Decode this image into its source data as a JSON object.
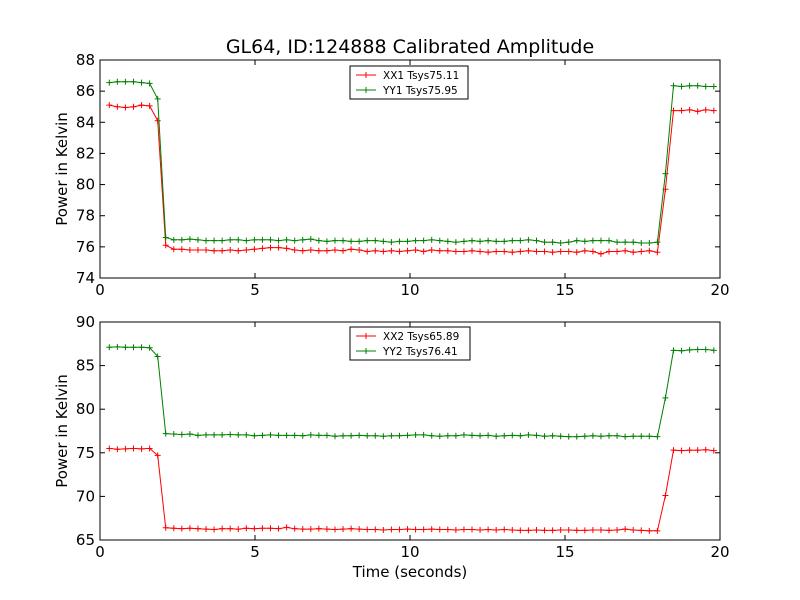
{
  "figure_title": "GL64, ID:124888 Calibrated Amplitude",
  "colors": {
    "xx": "#ff0000",
    "yy": "#008000"
  },
  "chart_data": [
    {
      "type": "line",
      "xlabel": "",
      "ylabel": "Power in Kelvin",
      "xlim": [
        0,
        20
      ],
      "ylim": [
        74,
        88
      ],
      "xticks": [
        "0",
        "5",
        "10",
        "15",
        "20"
      ],
      "yticks": [
        "74",
        "76",
        "78",
        "80",
        "82",
        "84",
        "86",
        "88"
      ],
      "grid": false,
      "legend_position": "top-center",
      "x": [
        0.3,
        0.56,
        0.82,
        1.08,
        1.34,
        1.6,
        1.86,
        2.12,
        2.38,
        2.64,
        2.9,
        3.16,
        3.42,
        3.68,
        3.94,
        4.2,
        4.46,
        4.72,
        4.98,
        5.24,
        5.5,
        5.76,
        6.02,
        6.28,
        6.54,
        6.8,
        7.06,
        7.32,
        7.58,
        7.84,
        8.1,
        8.36,
        8.62,
        8.88,
        9.14,
        9.4,
        9.66,
        9.92,
        10.18,
        10.44,
        10.7,
        10.96,
        11.22,
        11.48,
        11.74,
        12.0,
        12.26,
        12.52,
        12.78,
        13.04,
        13.3,
        13.56,
        13.82,
        14.08,
        14.34,
        14.6,
        14.86,
        15.12,
        15.38,
        15.64,
        15.9,
        16.16,
        16.42,
        16.68,
        16.94,
        17.2,
        17.46,
        17.72,
        17.98,
        18.24,
        18.5,
        18.76,
        19.02,
        19.28,
        19.54,
        19.8
      ],
      "series": [
        {
          "name": "XX1 Tsys75.11",
          "color": "#ff0000",
          "values": [
            85.1,
            85.0,
            84.95,
            85.0,
            85.1,
            85.05,
            84.1,
            76.1,
            75.85,
            75.85,
            75.8,
            75.8,
            75.8,
            75.75,
            75.75,
            75.8,
            75.75,
            75.8,
            75.85,
            75.9,
            75.95,
            75.95,
            75.9,
            75.8,
            75.75,
            75.8,
            75.75,
            75.75,
            75.8,
            75.75,
            75.85,
            75.8,
            75.7,
            75.75,
            75.7,
            75.75,
            75.7,
            75.75,
            75.8,
            75.7,
            75.8,
            75.75,
            75.75,
            75.7,
            75.7,
            75.75,
            75.7,
            75.65,
            75.7,
            75.7,
            75.65,
            75.7,
            75.75,
            75.7,
            75.7,
            75.65,
            75.7,
            75.7,
            75.65,
            75.75,
            75.7,
            75.55,
            75.7,
            75.7,
            75.75,
            75.65,
            75.7,
            75.75,
            75.65,
            79.7,
            84.75,
            84.75,
            84.8,
            84.7,
            84.8,
            84.75
          ]
        },
        {
          "name": "YY1 Tsys75.95",
          "color": "#008000",
          "values": [
            86.55,
            86.6,
            86.6,
            86.6,
            86.55,
            86.5,
            85.5,
            76.6,
            76.45,
            76.45,
            76.5,
            76.45,
            76.4,
            76.4,
            76.4,
            76.45,
            76.45,
            76.4,
            76.45,
            76.45,
            76.45,
            76.4,
            76.45,
            76.4,
            76.45,
            76.5,
            76.4,
            76.35,
            76.4,
            76.4,
            76.35,
            76.35,
            76.4,
            76.4,
            76.35,
            76.3,
            76.35,
            76.35,
            76.4,
            76.4,
            76.45,
            76.4,
            76.35,
            76.3,
            76.35,
            76.4,
            76.35,
            76.4,
            76.35,
            76.35,
            76.4,
            76.4,
            76.45,
            76.4,
            76.3,
            76.3,
            76.25,
            76.3,
            76.4,
            76.35,
            76.4,
            76.4,
            76.4,
            76.3,
            76.3,
            76.3,
            76.25,
            76.25,
            76.3,
            80.7,
            86.35,
            86.3,
            86.35,
            86.35,
            86.3,
            86.3
          ]
        }
      ]
    },
    {
      "type": "line",
      "xlabel": "Time (seconds)",
      "ylabel": "Power in Kelvin",
      "xlim": [
        0,
        20
      ],
      "ylim": [
        65,
        90
      ],
      "xticks": [
        "0",
        "5",
        "10",
        "15",
        "20"
      ],
      "yticks": [
        "65",
        "70",
        "75",
        "80",
        "85",
        "90"
      ],
      "grid": false,
      "legend_position": "top-center",
      "x": [
        0.3,
        0.56,
        0.82,
        1.08,
        1.34,
        1.6,
        1.86,
        2.12,
        2.38,
        2.64,
        2.9,
        3.16,
        3.42,
        3.68,
        3.94,
        4.2,
        4.46,
        4.72,
        4.98,
        5.24,
        5.5,
        5.76,
        6.02,
        6.28,
        6.54,
        6.8,
        7.06,
        7.32,
        7.58,
        7.84,
        8.1,
        8.36,
        8.62,
        8.88,
        9.14,
        9.4,
        9.66,
        9.92,
        10.18,
        10.44,
        10.7,
        10.96,
        11.22,
        11.48,
        11.74,
        12.0,
        12.26,
        12.52,
        12.78,
        13.04,
        13.3,
        13.56,
        13.82,
        14.08,
        14.34,
        14.6,
        14.86,
        15.12,
        15.38,
        15.64,
        15.9,
        16.16,
        16.42,
        16.68,
        16.94,
        17.2,
        17.46,
        17.72,
        17.98,
        18.24,
        18.5,
        18.76,
        19.02,
        19.28,
        19.54,
        19.8
      ],
      "series": [
        {
          "name": "XX2 Tsys65.89",
          "color": "#ff0000",
          "values": [
            75.5,
            75.4,
            75.45,
            75.5,
            75.45,
            75.5,
            74.7,
            66.4,
            66.35,
            66.3,
            66.35,
            66.3,
            66.25,
            66.2,
            66.3,
            66.3,
            66.25,
            66.35,
            66.3,
            66.35,
            66.35,
            66.3,
            66.45,
            66.3,
            66.25,
            66.25,
            66.3,
            66.25,
            66.2,
            66.25,
            66.3,
            66.25,
            66.2,
            66.2,
            66.15,
            66.2,
            66.2,
            66.25,
            66.2,
            66.2,
            66.25,
            66.2,
            66.2,
            66.15,
            66.2,
            66.2,
            66.15,
            66.2,
            66.15,
            66.2,
            66.15,
            66.1,
            66.1,
            66.15,
            66.1,
            66.1,
            66.15,
            66.15,
            66.1,
            66.1,
            66.15,
            66.15,
            66.1,
            66.15,
            66.25,
            66.15,
            66.1,
            66.05,
            66.05,
            70.1,
            75.3,
            75.25,
            75.3,
            75.3,
            75.35,
            75.25
          ]
        },
        {
          "name": "YY2 Tsys76.41",
          "color": "#008000",
          "values": [
            87.1,
            87.15,
            87.1,
            87.1,
            87.1,
            87.05,
            86.05,
            77.2,
            77.15,
            77.1,
            77.15,
            77.0,
            77.05,
            77.05,
            77.05,
            77.1,
            77.05,
            77.05,
            76.95,
            77.0,
            77.05,
            77.0,
            77.0,
            77.0,
            76.95,
            77.05,
            77.0,
            77.0,
            76.9,
            76.95,
            76.95,
            77.0,
            76.95,
            76.95,
            76.9,
            76.95,
            76.95,
            77.0,
            77.05,
            77.05,
            76.95,
            76.9,
            76.95,
            76.95,
            77.05,
            77.0,
            76.95,
            77.0,
            76.9,
            76.95,
            77.0,
            76.95,
            77.05,
            77.0,
            76.9,
            76.95,
            76.9,
            76.85,
            76.85,
            76.9,
            76.95,
            76.9,
            76.95,
            76.95,
            76.85,
            76.9,
            76.9,
            76.9,
            76.85,
            81.3,
            86.75,
            86.7,
            86.8,
            86.85,
            86.85,
            86.75
          ]
        }
      ]
    }
  ]
}
